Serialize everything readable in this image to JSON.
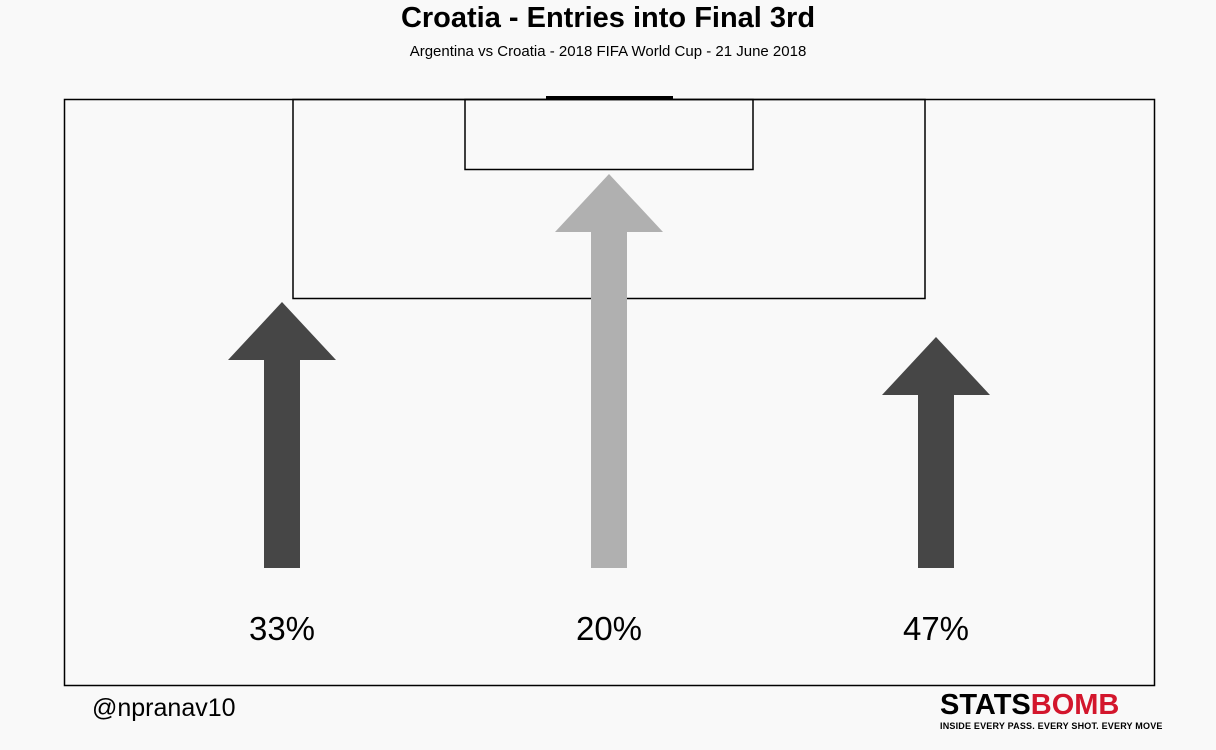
{
  "header": {
    "title": "Croatia - Entries into Final 3rd",
    "subtitle": "Argentina vs Croatia  -  2018 FIFA World Cup  -  21 June 2018"
  },
  "footer": {
    "handle": "@npranav10",
    "logo_word_a": "STATS",
    "logo_word_b": "BOMB",
    "logo_tagline": "INSIDE EVERY PASS. EVERY SHOT. EVERY MOVE"
  },
  "chart_data": {
    "type": "bar",
    "title": "Croatia - Entries into Final 3rd",
    "subtitle": "Argentina vs Croatia  -  2018 FIFA World Cup  -  21 June 2018",
    "categories": [
      "Left",
      "Centre",
      "Right"
    ],
    "values": [
      33,
      20,
      47
    ],
    "labels": [
      "33%",
      "20%",
      "47%"
    ],
    "colors": [
      "#464646",
      "#b0b0b0",
      "#464646"
    ],
    "legend": "none",
    "grid": false
  }
}
